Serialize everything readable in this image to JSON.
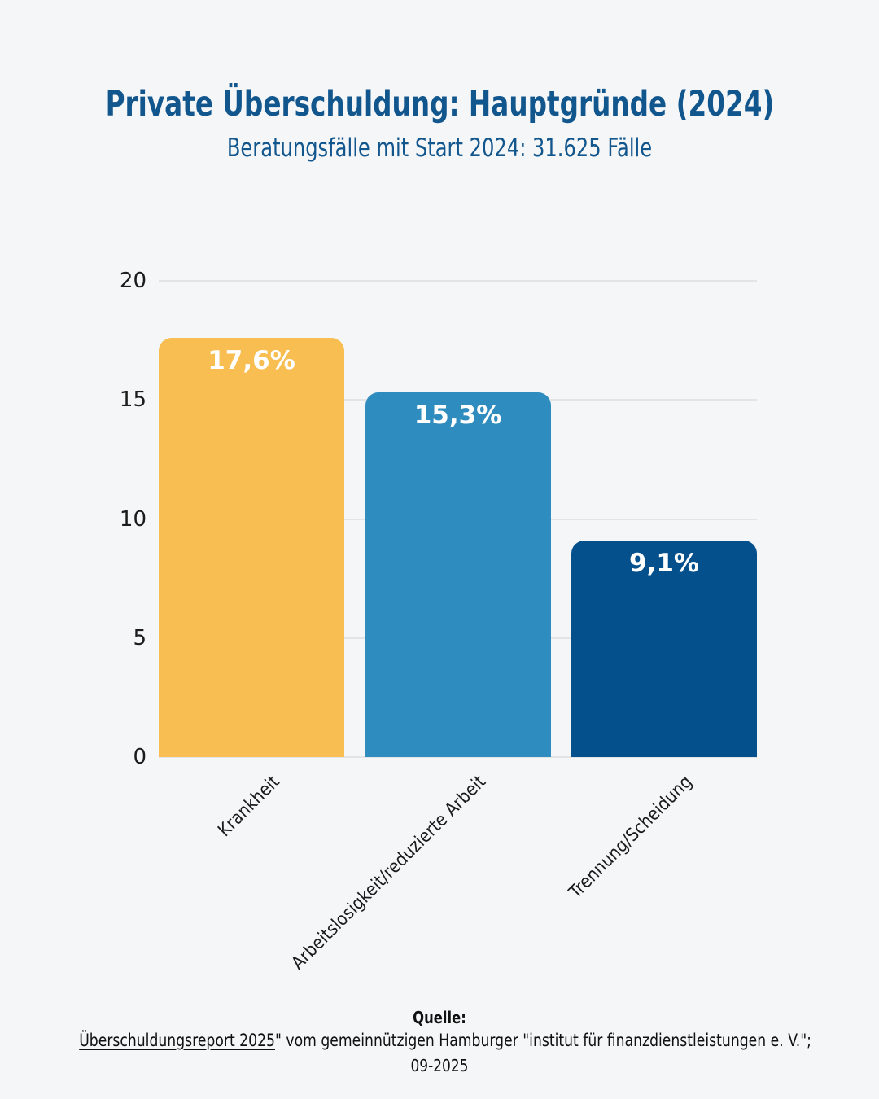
{
  "header": {
    "title": "Private Überschuldung: Hauptgründe (2024)",
    "subtitle": "Beratungsfälle mit Start 2024: 31.625 Fälle"
  },
  "chart_data": {
    "type": "bar",
    "title": "Private Überschuldung: Hauptgründe (2024)",
    "subtitle": "Beratungsfälle mit Start 2024: 31.625 Fälle",
    "categories": [
      "Krankheit",
      "Arbeitslosigkeit/reduzierte Arbeit",
      "Trennung/Scheidung"
    ],
    "values": [
      17.6,
      15.3,
      9.1
    ],
    "value_labels": [
      "17,6%",
      "15,3%",
      "9,1%"
    ],
    "bar_colors": [
      "#f9be51",
      "#2e8cbe",
      "#03508c"
    ],
    "xlabel": "",
    "ylabel": "",
    "ylim": [
      0,
      20
    ],
    "yticks": [
      0,
      5,
      10,
      15,
      20
    ],
    "grid": true,
    "legend": "none"
  },
  "footer": {
    "source_label": "Quelle:",
    "source_link": "Überschuldungsreport 2025",
    "source_rest": "\" vom gemeinnützigen Hamburger \"institut für finanzdienstleistungen e. V.\";",
    "date": "09-2025"
  },
  "colors": {
    "background": "#f5f6f7",
    "title_blue": "#12568e",
    "gridline": "#e3e4e5",
    "axis_text": "#1c1c1c",
    "bar_label_text": "#ffffff"
  }
}
